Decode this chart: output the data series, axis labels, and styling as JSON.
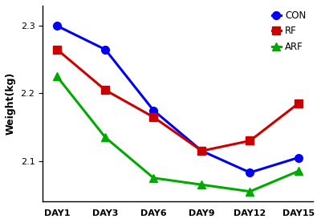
{
  "x_labels": [
    "DAY1",
    "DAY3",
    "DAY6",
    "DAY9",
    "DAY12",
    "DAY15"
  ],
  "x_positions": [
    0,
    1,
    2,
    3,
    4,
    5
  ],
  "series": [
    {
      "label": "CON",
      "color": "#0000EE",
      "marker": "o",
      "values": [
        2.3,
        2.265,
        2.175,
        2.115,
        2.083,
        2.105
      ]
    },
    {
      "label": "RF",
      "color": "#CC0000",
      "marker": "s",
      "values": [
        2.265,
        2.205,
        2.165,
        2.115,
        2.13,
        2.185
      ]
    },
    {
      "label": "ARF",
      "color": "#00AA00",
      "marker": "^",
      "values": [
        2.225,
        2.135,
        2.075,
        2.065,
        2.055,
        2.085
      ]
    }
  ],
  "ylabel": "Weight(kg)",
  "ylim": [
    2.04,
    2.33
  ],
  "yticks": [
    2.1,
    2.2,
    2.3
  ],
  "background_color": "#ffffff",
  "linewidth": 2.2,
  "markersize": 7
}
